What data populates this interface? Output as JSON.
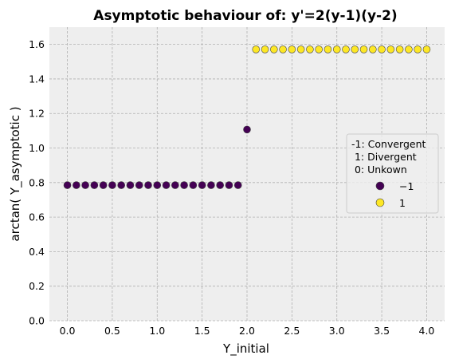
{
  "chart_data": {
    "type": "scatter",
    "title": "Asymptotic behaviour of: y'=2(y-1)(y-2)",
    "xlabel": "Y_initial",
    "ylabel": "arctan( Y_asymptotic )",
    "xlim": [
      -0.2,
      4.2
    ],
    "ylim": [
      0.0,
      1.7
    ],
    "xticks": [
      "0.0",
      "0.5",
      "1.0",
      "1.5",
      "2.0",
      "2.5",
      "3.0",
      "3.5",
      "4.0"
    ],
    "yticks": [
      "0.0",
      "0.2",
      "0.4",
      "0.6",
      "0.8",
      "1.0",
      "1.2",
      "1.4",
      "1.6"
    ],
    "grid": true,
    "legend": {
      "placement": "center-right",
      "title_lines": [
        "-1: Convergent",
        " 1: Divergent",
        " 0: Unkown"
      ],
      "entries": [
        {
          "label": "−1",
          "color": "#440154"
        },
        {
          "label": "1",
          "color": "#fde725"
        }
      ]
    },
    "colors": {
      "-1": "#440154",
      "1": "#fde725"
    },
    "x": [
      0.0,
      0.1,
      0.2,
      0.3,
      0.4,
      0.5,
      0.6,
      0.7,
      0.8,
      0.9,
      1.0,
      1.1,
      1.2,
      1.3,
      1.4,
      1.5,
      1.6,
      1.7,
      1.8,
      1.9,
      2.0,
      2.1,
      2.2,
      2.3,
      2.4,
      2.5,
      2.6,
      2.7,
      2.8,
      2.9,
      3.0,
      3.1,
      3.2,
      3.3,
      3.4,
      3.5,
      3.6,
      3.7,
      3.8,
      3.9,
      4.0
    ],
    "y": [
      0.785,
      0.785,
      0.785,
      0.785,
      0.785,
      0.785,
      0.785,
      0.785,
      0.785,
      0.785,
      0.785,
      0.785,
      0.785,
      0.785,
      0.785,
      0.785,
      0.785,
      0.785,
      0.785,
      0.785,
      1.107,
      1.571,
      1.571,
      1.571,
      1.571,
      1.571,
      1.571,
      1.571,
      1.571,
      1.571,
      1.571,
      1.571,
      1.571,
      1.571,
      1.571,
      1.571,
      1.571,
      1.571,
      1.571,
      1.571,
      1.571
    ],
    "class": [
      -1,
      -1,
      -1,
      -1,
      -1,
      -1,
      -1,
      -1,
      -1,
      -1,
      -1,
      -1,
      -1,
      -1,
      -1,
      -1,
      -1,
      -1,
      -1,
      -1,
      -1,
      1,
      1,
      1,
      1,
      1,
      1,
      1,
      1,
      1,
      1,
      1,
      1,
      1,
      1,
      1,
      1,
      1,
      1,
      1,
      1
    ]
  }
}
